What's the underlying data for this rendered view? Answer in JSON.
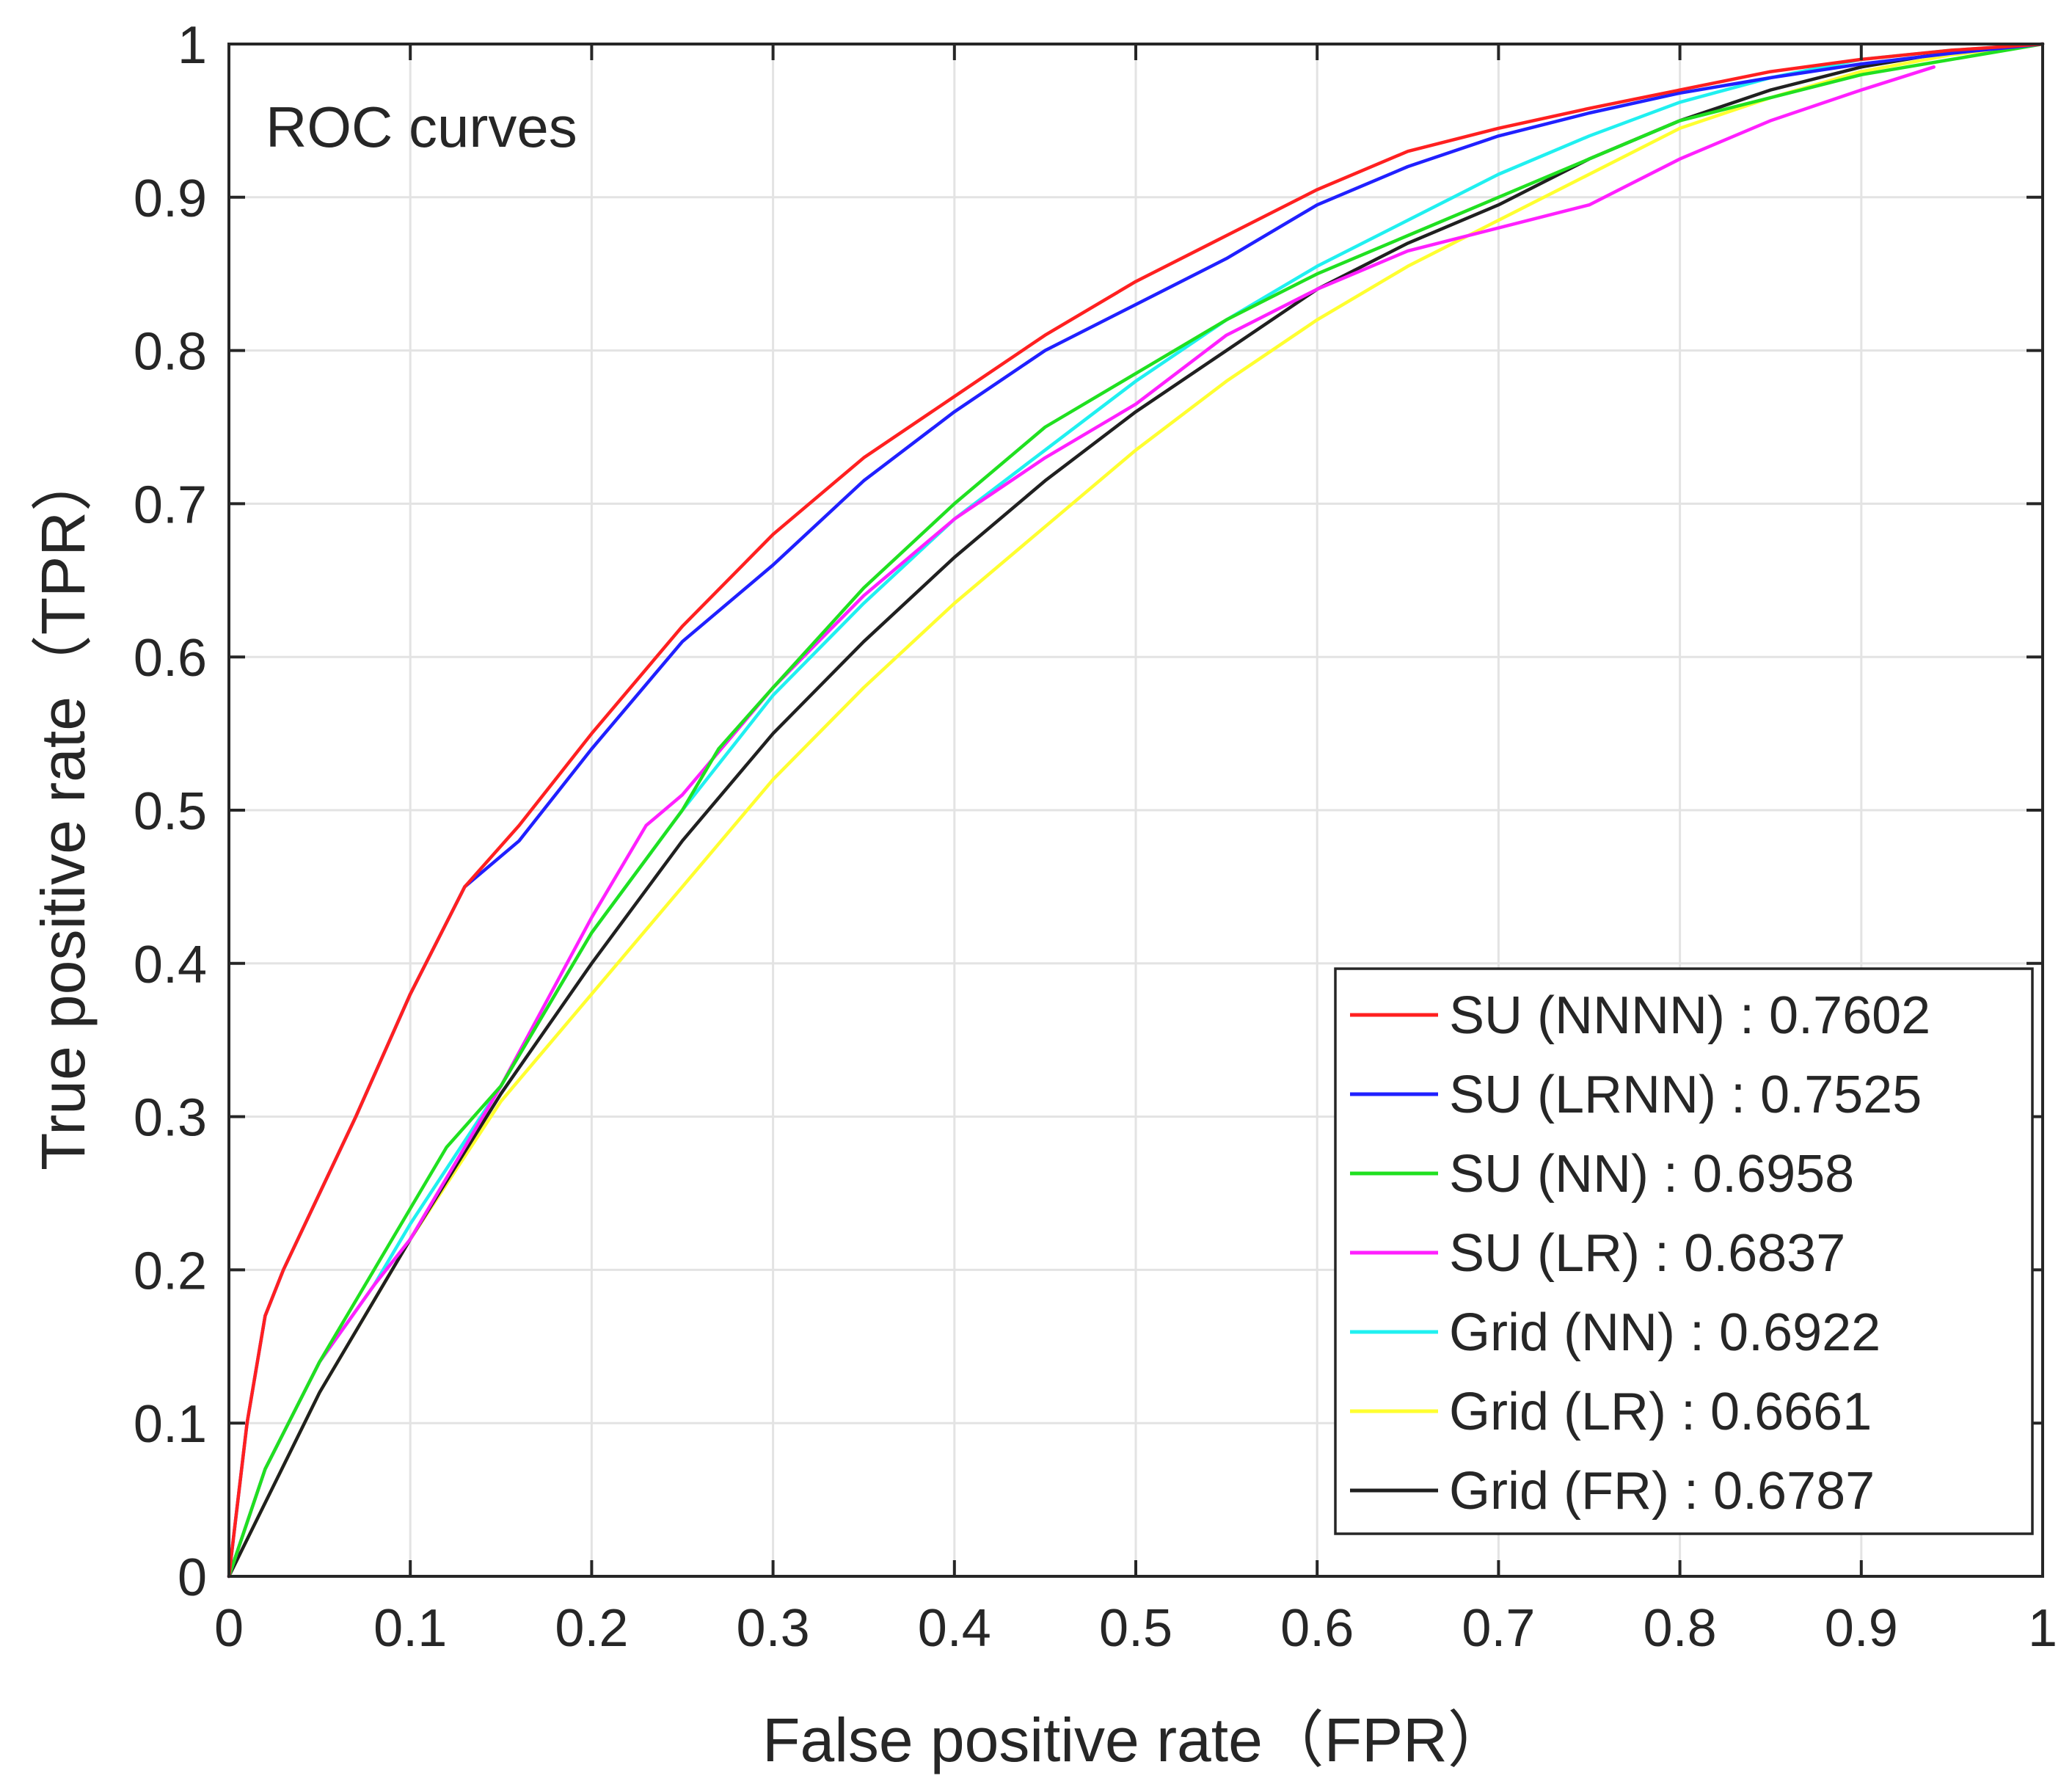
{
  "chart_data": {
    "type": "line",
    "title": "ROC curves",
    "xlabel": "False positive rate（FPR）",
    "ylabel": "True positive rate（TPR）",
    "xlim": [
      0,
      1
    ],
    "ylim": [
      0,
      1
    ],
    "grid": true,
    "legend_position": "bottom-right",
    "x_ticks": [
      "0",
      "0.1",
      "0.2",
      "0.3",
      "0.4",
      "0.5",
      "0.6",
      "0.7",
      "0.8",
      "0.9",
      "1"
    ],
    "y_ticks": [
      "0",
      "0.1",
      "0.2",
      "0.3",
      "0.4",
      "0.5",
      "0.6",
      "0.7",
      "0.8",
      "0.9",
      "1"
    ],
    "series": [
      {
        "name": "SU (NNNN) : 0.7602",
        "color": "#ff2020",
        "x": [
          0,
          0.01,
          0.02,
          0.03,
          0.05,
          0.07,
          0.1,
          0.13,
          0.16,
          0.2,
          0.25,
          0.3,
          0.35,
          0.4,
          0.45,
          0.5,
          0.55,
          0.6,
          0.65,
          0.7,
          0.75,
          0.8,
          0.85,
          0.9,
          0.95,
          1
        ],
        "y": [
          0,
          0.1,
          0.17,
          0.2,
          0.25,
          0.3,
          0.38,
          0.45,
          0.49,
          0.55,
          0.62,
          0.68,
          0.73,
          0.77,
          0.81,
          0.845,
          0.875,
          0.905,
          0.93,
          0.945,
          0.958,
          0.97,
          0.982,
          0.99,
          0.996,
          1
        ]
      },
      {
        "name": "SU (LRNN) : 0.7525",
        "color": "#2020ff",
        "x": [
          0,
          0.01,
          0.02,
          0.03,
          0.05,
          0.07,
          0.1,
          0.13,
          0.16,
          0.2,
          0.25,
          0.3,
          0.35,
          0.4,
          0.45,
          0.5,
          0.55,
          0.6,
          0.65,
          0.7,
          0.75,
          0.8,
          0.85,
          0.9,
          0.95,
          1
        ],
        "y": [
          0,
          0.1,
          0.17,
          0.2,
          0.25,
          0.3,
          0.38,
          0.45,
          0.48,
          0.54,
          0.61,
          0.66,
          0.715,
          0.76,
          0.8,
          0.83,
          0.86,
          0.895,
          0.92,
          0.94,
          0.955,
          0.968,
          0.978,
          0.987,
          0.994,
          1
        ]
      },
      {
        "name": "SU (NN) : 0.6958",
        "color": "#20e020",
        "x": [
          0,
          0.02,
          0.05,
          0.08,
          0.1,
          0.12,
          0.15,
          0.2,
          0.25,
          0.27,
          0.3,
          0.35,
          0.4,
          0.45,
          0.5,
          0.55,
          0.6,
          0.65,
          0.7,
          0.75,
          0.8,
          0.85,
          0.9,
          0.95,
          1
        ],
        "y": [
          0,
          0.07,
          0.14,
          0.2,
          0.24,
          0.28,
          0.32,
          0.42,
          0.5,
          0.54,
          0.58,
          0.645,
          0.7,
          0.75,
          0.785,
          0.82,
          0.85,
          0.875,
          0.9,
          0.925,
          0.95,
          0.965,
          0.98,
          0.99,
          1
        ]
      },
      {
        "name": "SU (LR) : 0.6837",
        "color": "#ff20ff",
        "x": [
          0,
          0.02,
          0.05,
          0.08,
          0.1,
          0.15,
          0.2,
          0.23,
          0.25,
          0.3,
          0.35,
          0.4,
          0.45,
          0.5,
          0.55,
          0.6,
          0.65,
          0.7,
          0.75,
          0.8,
          0.85,
          0.9,
          0.94
        ],
        "y": [
          0,
          0.07,
          0.14,
          0.19,
          0.22,
          0.32,
          0.43,
          0.49,
          0.51,
          0.58,
          0.64,
          0.69,
          0.73,
          0.765,
          0.81,
          0.84,
          0.865,
          0.88,
          0.895,
          0.925,
          0.95,
          0.97,
          0.985
        ]
      },
      {
        "name": "Grid (NN) : 0.6922",
        "color": "#20f0f0",
        "x": [
          0,
          0.02,
          0.05,
          0.08,
          0.1,
          0.15,
          0.2,
          0.25,
          0.3,
          0.35,
          0.4,
          0.45,
          0.5,
          0.55,
          0.6,
          0.65,
          0.7,
          0.75,
          0.8,
          0.85,
          0.9,
          0.95,
          1
        ],
        "y": [
          0,
          0.07,
          0.14,
          0.19,
          0.23,
          0.32,
          0.42,
          0.5,
          0.575,
          0.635,
          0.69,
          0.735,
          0.78,
          0.82,
          0.855,
          0.885,
          0.915,
          0.94,
          0.962,
          0.978,
          0.99,
          0.996,
          1
        ]
      },
      {
        "name": "Grid (LR) : 0.6661",
        "color": "#ffff30",
        "x": [
          0,
          0.05,
          0.1,
          0.15,
          0.2,
          0.25,
          0.3,
          0.35,
          0.4,
          0.45,
          0.5,
          0.55,
          0.6,
          0.65,
          0.7,
          0.75,
          0.8,
          0.85,
          0.9,
          0.95,
          1
        ],
        "y": [
          0,
          0.12,
          0.22,
          0.31,
          0.38,
          0.45,
          0.52,
          0.58,
          0.635,
          0.685,
          0.735,
          0.78,
          0.82,
          0.855,
          0.885,
          0.915,
          0.945,
          0.965,
          0.982,
          0.993,
          1
        ]
      },
      {
        "name": "Grid (FR) : 0.6787",
        "color": "#202020",
        "x": [
          0,
          0.05,
          0.1,
          0.15,
          0.2,
          0.25,
          0.3,
          0.35,
          0.4,
          0.45,
          0.5,
          0.55,
          0.6,
          0.65,
          0.7,
          0.75,
          0.8,
          0.85,
          0.9,
          0.95,
          1
        ],
        "y": [
          0,
          0.12,
          0.22,
          0.315,
          0.4,
          0.48,
          0.55,
          0.61,
          0.665,
          0.715,
          0.76,
          0.8,
          0.84,
          0.87,
          0.895,
          0.925,
          0.95,
          0.97,
          0.985,
          0.995,
          1
        ]
      }
    ]
  }
}
